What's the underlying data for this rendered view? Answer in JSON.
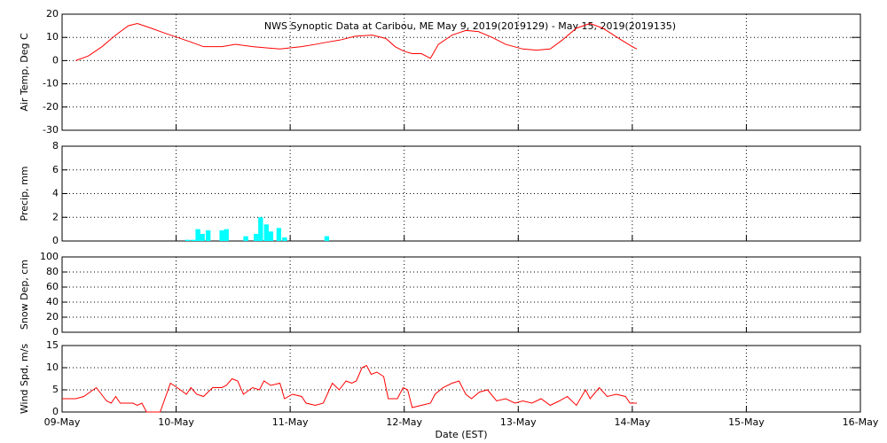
{
  "chart_data": [
    {
      "type": "line",
      "title": "NWS Synoptic Data at Caribou, ME   May  9, 2019(2019129) - May 15, 2019(2019135)",
      "ylabel": "Air Temp, Deg C",
      "color": "#ff0000",
      "grid": true,
      "xlim": [
        9,
        16
      ],
      "xticks": [
        9,
        10,
        11,
        12,
        13,
        14,
        15,
        16
      ],
      "ylim": [
        -30,
        20
      ],
      "yticks": [
        -30,
        -20,
        -10,
        0,
        10,
        20
      ],
      "x": [
        9.12,
        9.23,
        9.35,
        9.47,
        9.58,
        9.66,
        9.78,
        9.89,
        10.01,
        10.13,
        10.24,
        10.4,
        10.52,
        10.67,
        10.79,
        10.91,
        11.1,
        11.22,
        11.33,
        11.45,
        11.57,
        11.72,
        11.84,
        11.92,
        12.0,
        12.07,
        12.15,
        12.23,
        12.3,
        12.42,
        12.54,
        12.65,
        12.77,
        12.89,
        13.04,
        13.16,
        13.28,
        13.39,
        13.51,
        13.63,
        13.74,
        13.9,
        14.0,
        14.04
      ],
      "values": [
        0,
        2,
        6,
        11,
        15,
        16,
        14,
        12,
        10,
        8,
        6,
        6,
        7,
        6,
        5.5,
        5,
        6,
        7,
        8,
        9,
        10.5,
        11,
        9.5,
        6,
        4,
        3,
        3,
        1,
        7,
        11,
        13,
        12.5,
        10,
        7,
        5,
        4.5,
        5,
        9,
        14,
        16,
        14,
        9,
        6,
        5
      ]
    },
    {
      "type": "bar",
      "ylabel": "Precip, mm",
      "color": "#00ffff",
      "grid": true,
      "xlim": [
        9,
        16
      ],
      "xticks": [
        9,
        10,
        11,
        12,
        13,
        14,
        15,
        16
      ],
      "ylim": [
        0,
        8
      ],
      "yticks": [
        0,
        2,
        4,
        6,
        8
      ],
      "x": [
        10.08,
        10.13,
        10.17,
        10.21,
        10.26,
        10.38,
        10.42,
        10.59,
        10.68,
        10.72,
        10.77,
        10.81,
        10.88,
        10.93,
        11.3
      ],
      "values": [
        0.1,
        0.1,
        1.0,
        0.6,
        0.9,
        0.9,
        1.0,
        0.4,
        0.6,
        2.0,
        1.4,
        0.8,
        1.1,
        0.3,
        0.4
      ]
    },
    {
      "type": "line",
      "ylabel": "Snow Dep, cm",
      "grid": true,
      "xlim": [
        9,
        16
      ],
      "xticks": [
        9,
        10,
        11,
        12,
        13,
        14,
        15,
        16
      ],
      "ylim": [
        0,
        100
      ],
      "yticks": [
        0,
        20,
        40,
        60,
        80,
        100
      ]
    },
    {
      "type": "line",
      "ylabel": "Wind Spd, m/s",
      "xlabel": "Date (EST)",
      "color": "#ff0000",
      "grid": true,
      "xlim": [
        9,
        16
      ],
      "xticks": [
        {
          "value": 9,
          "label": "09-May"
        },
        {
          "value": 10,
          "label": "10-May"
        },
        {
          "value": 11,
          "label": "11-May"
        },
        {
          "value": 12,
          "label": "12-May"
        },
        {
          "value": 13,
          "label": "13-May"
        },
        {
          "value": 14,
          "label": "14-May"
        },
        {
          "value": 15,
          "label": "15-May"
        },
        {
          "value": 16,
          "label": "16-May"
        }
      ],
      "ylim": [
        0,
        15
      ],
      "yticks": [
        0,
        5,
        10,
        15
      ],
      "x": [
        9.0,
        9.12,
        9.19,
        9.3,
        9.39,
        9.43,
        9.47,
        9.51,
        9.62,
        9.66,
        9.7,
        9.74,
        9.86,
        9.95,
        10.01,
        10.09,
        10.13,
        10.18,
        10.24,
        10.32,
        10.4,
        10.44,
        10.49,
        10.54,
        10.59,
        10.67,
        10.73,
        10.77,
        10.83,
        10.91,
        10.95,
        11.02,
        11.1,
        11.14,
        11.22,
        11.29,
        11.37,
        11.43,
        11.49,
        11.54,
        11.58,
        11.63,
        11.67,
        11.71,
        11.76,
        11.82,
        11.86,
        11.94,
        11.99,
        12.03,
        12.07,
        12.15,
        12.23,
        12.27,
        12.34,
        12.42,
        12.48,
        12.54,
        12.59,
        12.66,
        12.73,
        12.81,
        12.89,
        12.97,
        13.04,
        13.12,
        13.2,
        13.28,
        13.36,
        13.43,
        13.51,
        13.59,
        13.63,
        13.71,
        13.78,
        13.86,
        13.94,
        13.98,
        14.04
      ],
      "values": [
        3,
        3,
        3.5,
        5.5,
        2.5,
        2,
        3.5,
        2,
        2,
        1.5,
        2,
        0,
        0,
        6.5,
        5.5,
        4,
        5.5,
        4,
        3.5,
        5.5,
        5.5,
        6,
        7.5,
        7,
        4,
        5.5,
        5,
        7,
        6,
        6.5,
        3,
        4,
        3.5,
        2,
        1.5,
        2,
        6.5,
        5,
        7,
        6.5,
        7,
        10,
        10.5,
        8.5,
        9,
        8,
        3,
        3,
        5.5,
        5,
        1,
        1.5,
        2,
        4,
        5.5,
        6.5,
        7,
        4,
        3,
        4.5,
        5,
        2.5,
        3,
        2,
        2.5,
        2,
        3,
        1.5,
        2.5,
        3.5,
        1.5,
        5,
        3,
        5.5,
        3.5,
        4,
        3.5,
        2,
        2
      ]
    }
  ]
}
